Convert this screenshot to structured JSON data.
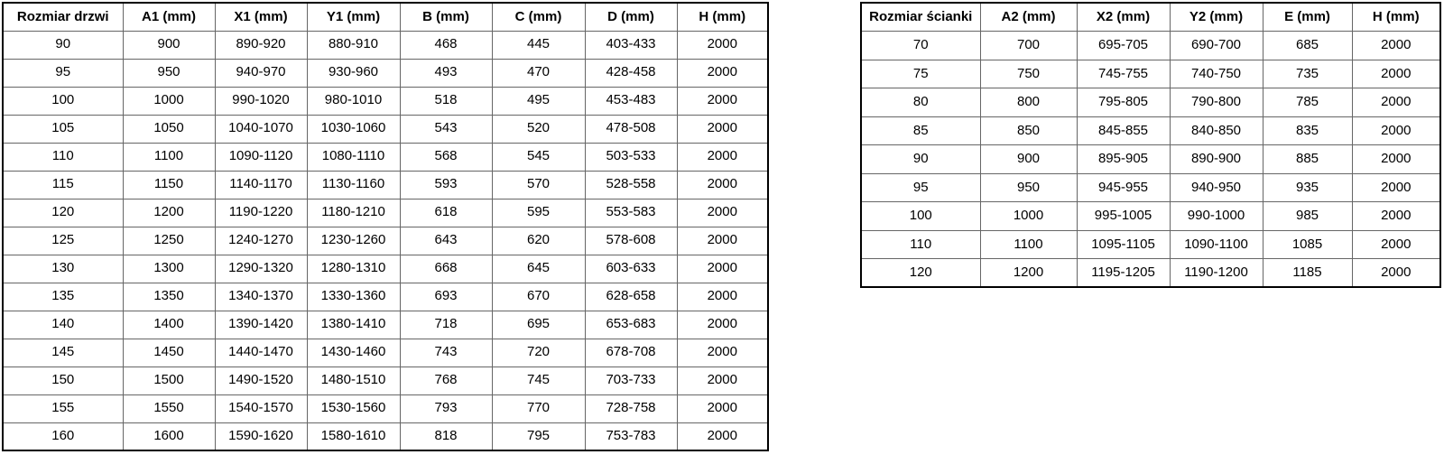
{
  "colors": {
    "bg": "#ffffff",
    "text": "#000000",
    "border-outer": "#000000",
    "border-inner": "#666666"
  },
  "door_table": {
    "title": "Rozmiar drzwi",
    "columns": [
      "Rozmiar drzwi",
      "A1 (mm)",
      "X1 (mm)",
      "Y1 (mm)",
      "B (mm)",
      "C (mm)",
      "D (mm)",
      "H (mm)"
    ],
    "rows": [
      [
        "90",
        "900",
        "890-920",
        "880-910",
        "468",
        "445",
        "403-433",
        "2000"
      ],
      [
        "95",
        "950",
        "940-970",
        "930-960",
        "493",
        "470",
        "428-458",
        "2000"
      ],
      [
        "100",
        "1000",
        "990-1020",
        "980-1010",
        "518",
        "495",
        "453-483",
        "2000"
      ],
      [
        "105",
        "1050",
        "1040-1070",
        "1030-1060",
        "543",
        "520",
        "478-508",
        "2000"
      ],
      [
        "110",
        "1100",
        "1090-1120",
        "1080-1110",
        "568",
        "545",
        "503-533",
        "2000"
      ],
      [
        "115",
        "1150",
        "1140-1170",
        "1130-1160",
        "593",
        "570",
        "528-558",
        "2000"
      ],
      [
        "120",
        "1200",
        "1190-1220",
        "1180-1210",
        "618",
        "595",
        "553-583",
        "2000"
      ],
      [
        "125",
        "1250",
        "1240-1270",
        "1230-1260",
        "643",
        "620",
        "578-608",
        "2000"
      ],
      [
        "130",
        "1300",
        "1290-1320",
        "1280-1310",
        "668",
        "645",
        "603-633",
        "2000"
      ],
      [
        "135",
        "1350",
        "1340-1370",
        "1330-1360",
        "693",
        "670",
        "628-658",
        "2000"
      ],
      [
        "140",
        "1400",
        "1390-1420",
        "1380-1410",
        "718",
        "695",
        "653-683",
        "2000"
      ],
      [
        "145",
        "1450",
        "1440-1470",
        "1430-1460",
        "743",
        "720",
        "678-708",
        "2000"
      ],
      [
        "150",
        "1500",
        "1490-1520",
        "1480-1510",
        "768",
        "745",
        "703-733",
        "2000"
      ],
      [
        "155",
        "1550",
        "1540-1570",
        "1530-1560",
        "793",
        "770",
        "728-758",
        "2000"
      ],
      [
        "160",
        "1600",
        "1590-1620",
        "1580-1610",
        "818",
        "795",
        "753-783",
        "2000"
      ]
    ]
  },
  "wall_table": {
    "title": "Rozmiar ścianki",
    "columns": [
      "Rozmiar ścianki",
      "A2 (mm)",
      "X2 (mm)",
      "Y2 (mm)",
      "E (mm)",
      "H (mm)"
    ],
    "rows": [
      [
        "70",
        "700",
        "695-705",
        "690-700",
        "685",
        "2000"
      ],
      [
        "75",
        "750",
        "745-755",
        "740-750",
        "735",
        "2000"
      ],
      [
        "80",
        "800",
        "795-805",
        "790-800",
        "785",
        "2000"
      ],
      [
        "85",
        "850",
        "845-855",
        "840-850",
        "835",
        "2000"
      ],
      [
        "90",
        "900",
        "895-905",
        "890-900",
        "885",
        "2000"
      ],
      [
        "95",
        "950",
        "945-955",
        "940-950",
        "935",
        "2000"
      ],
      [
        "100",
        "1000",
        "995-1005",
        "990-1000",
        "985",
        "2000"
      ],
      [
        "110",
        "1100",
        "1095-1105",
        "1090-1100",
        "1085",
        "2000"
      ],
      [
        "120",
        "1200",
        "1195-1205",
        "1190-1200",
        "1185",
        "2000"
      ]
    ]
  }
}
